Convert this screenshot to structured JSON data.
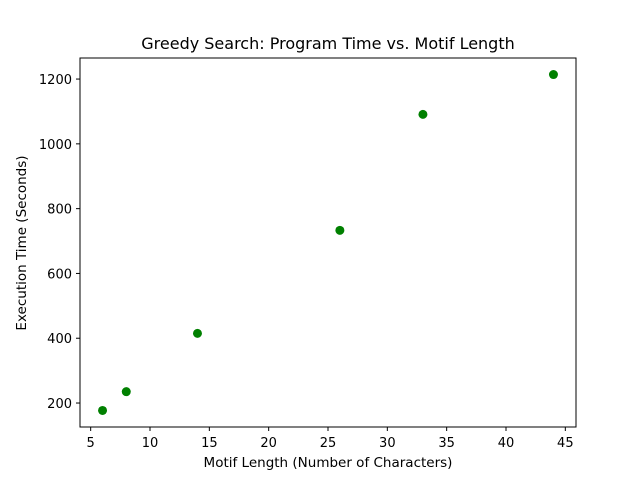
{
  "chart_data": {
    "type": "scatter",
    "title": "Greedy Search: Program Time vs. Motif Length",
    "xlabel": "Motif Length (Number of Characters)",
    "ylabel": "Execution Time (Seconds)",
    "xlim": [
      4.1,
      45.9
    ],
    "ylim": [
      126,
      1265
    ],
    "xticks": [
      5,
      10,
      15,
      20,
      25,
      30,
      35,
      40,
      45
    ],
    "yticks": [
      200,
      400,
      600,
      800,
      1000,
      1200
    ],
    "grid": false,
    "marker_color": "#008000",
    "series": [
      {
        "x": [
          6,
          8,
          14,
          26,
          33,
          44
        ],
        "y": [
          177,
          235,
          415,
          733,
          1091,
          1214
        ]
      }
    ]
  }
}
